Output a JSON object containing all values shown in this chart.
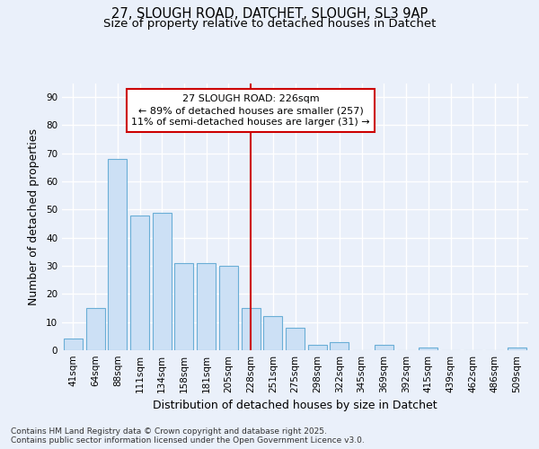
{
  "title_line1": "27, SLOUGH ROAD, DATCHET, SLOUGH, SL3 9AP",
  "title_line2": "Size of property relative to detached houses in Datchet",
  "xlabel": "Distribution of detached houses by size in Datchet",
  "ylabel": "Number of detached properties",
  "categories": [
    "41sqm",
    "64sqm",
    "88sqm",
    "111sqm",
    "134sqm",
    "158sqm",
    "181sqm",
    "205sqm",
    "228sqm",
    "251sqm",
    "275sqm",
    "298sqm",
    "322sqm",
    "345sqm",
    "369sqm",
    "392sqm",
    "415sqm",
    "439sqm",
    "462sqm",
    "486sqm",
    "509sqm"
  ],
  "values": [
    4,
    15,
    68,
    48,
    49,
    31,
    31,
    30,
    15,
    12,
    8,
    2,
    3,
    0,
    2,
    0,
    1,
    0,
    0,
    0,
    1
  ],
  "bar_color": "#cce0f5",
  "bar_edge_color": "#6aaed6",
  "vline_index": 8,
  "vline_color": "#cc0000",
  "annotation_text_line1": "27 SLOUGH ROAD: 226sqm",
  "annotation_text_line2": "← 89% of detached houses are smaller (257)",
  "annotation_text_line3": "11% of semi-detached houses are larger (31) →",
  "annotation_box_edgecolor": "#cc0000",
  "annotation_box_facecolor": "#ffffff",
  "ylim": [
    0,
    95
  ],
  "yticks": [
    0,
    10,
    20,
    30,
    40,
    50,
    60,
    70,
    80,
    90
  ],
  "background_color": "#eaf0fa",
  "grid_color": "#ffffff",
  "footer_text": "Contains HM Land Registry data © Crown copyright and database right 2025.\nContains public sector information licensed under the Open Government Licence v3.0.",
  "title_fontsize": 10.5,
  "subtitle_fontsize": 9.5,
  "axis_label_fontsize": 9,
  "tick_fontsize": 7.5,
  "annotation_fontsize": 8,
  "footer_fontsize": 6.5
}
